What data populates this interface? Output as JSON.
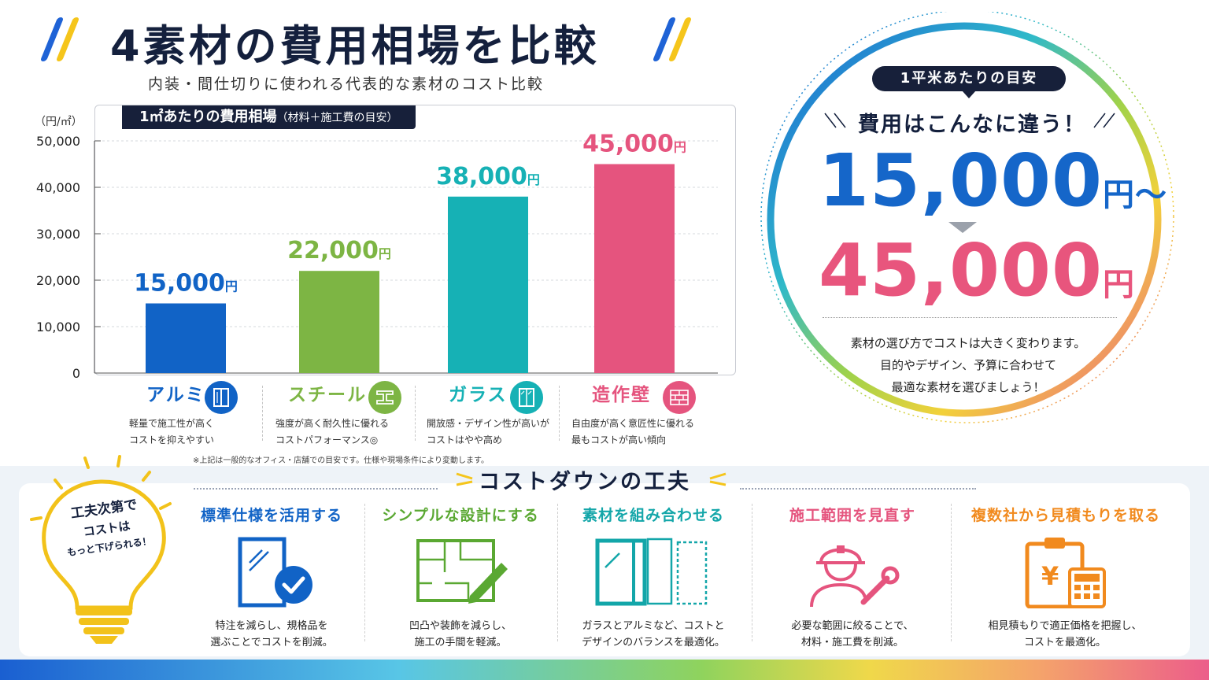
{
  "header": {
    "title": "4素材の費用相場を比較",
    "subtitle": "内装・間仕切りに使われる代表的な素材のコスト比較"
  },
  "chart_panel": {
    "header_main": "1㎡あたりの費用相場",
    "header_sub": "（材料＋施工費の目安）",
    "unit_label": "（円/㎡）"
  },
  "chart_data": {
    "type": "bar",
    "title": "1㎡あたりの費用相場（材料＋施工費の目安）",
    "ylabel": "（円/㎡）",
    "xlabel": "",
    "categories": [
      "アルミ",
      "スチール",
      "ガラス",
      "造作壁"
    ],
    "values": [
      15000,
      22000,
      38000,
      45000
    ],
    "value_labels": [
      "15,000",
      "22,000",
      "38,000",
      "45,000"
    ],
    "value_suffix": "円",
    "colors": [
      "#1163c6",
      "#7db544",
      "#16b1b5",
      "#e5547e"
    ],
    "yticks": [
      "0",
      "10,000",
      "20,000",
      "30,000",
      "40,000",
      "50,000"
    ],
    "ylim": [
      0,
      50000
    ],
    "grid": true
  },
  "categories": [
    {
      "name": "アルミ",
      "color": "#1163c6",
      "icon": "window-frame-icon",
      "desc": [
        "軽量で施工性が高く",
        "コストを抑えやすい"
      ]
    },
    {
      "name": "スチール",
      "color": "#7db544",
      "icon": "steel-beam-icon",
      "desc": [
        "強度が高く耐久性に優れる",
        "コストパフォーマンス◎"
      ]
    },
    {
      "name": "ガラス",
      "color": "#16b1b5",
      "icon": "glass-window-icon",
      "desc": [
        "開放感・デザイン性が高いが",
        "コストはやや高め"
      ]
    },
    {
      "name": "造作壁",
      "color": "#e5547e",
      "icon": "brick-wall-icon",
      "desc": [
        "自由度が高く意匠性に優れる",
        "最もコストが高い傾向"
      ]
    }
  ],
  "note": "※上記は一般的なオフィス・店舗での目安です。仕様や現場条件により変動します。",
  "summary": {
    "badge": "1平米あたりの目安",
    "headline": "費用はこんなに違う！",
    "from_value": "15,000",
    "from_suffix": "円～",
    "to_value": "45,000",
    "to_suffix": "円",
    "desc": [
      "素材の選び方でコストは大きく変わります。",
      "目的やデザイン、予算に合わせて",
      "最適な素材を選びましょう！"
    ]
  },
  "cost_down": {
    "title": "コストダウンの工夫",
    "bulb": {
      "line1": "工夫次第で",
      "line2": "コストは",
      "line3": "もっと下げられる！"
    },
    "tips": [
      {
        "title": "標準仕様を活用する",
        "color": "#1163c6",
        "icon": "standard-panel-check-icon",
        "desc": [
          "特注を減らし、規格品を",
          "選ぶことでコストを削減。"
        ]
      },
      {
        "title": "シンプルな設計にする",
        "color": "#5aa832",
        "icon": "blueprint-pencil-icon",
        "desc": [
          "凹凸や装飾を減らし、",
          "施工の手間を軽減。"
        ]
      },
      {
        "title": "素材を組み合わせる",
        "color": "#13a6a9",
        "icon": "combined-panels-icon",
        "desc": [
          "ガラスとアルミなど、コストと",
          "デザインのバランスを最適化。"
        ]
      },
      {
        "title": "施工範囲を見直す",
        "color": "#e5547e",
        "icon": "worker-wrench-icon",
        "desc": [
          "必要な範囲に絞ることで、",
          "材料・施工費を削減。"
        ]
      },
      {
        "title": "複数社から見積もりを取る",
        "color": "#f18a1e",
        "icon": "clipboard-calculator-icon",
        "desc": [
          "相見積もりで適正価格を把握し、",
          "コストを最適化。"
        ]
      }
    ]
  }
}
